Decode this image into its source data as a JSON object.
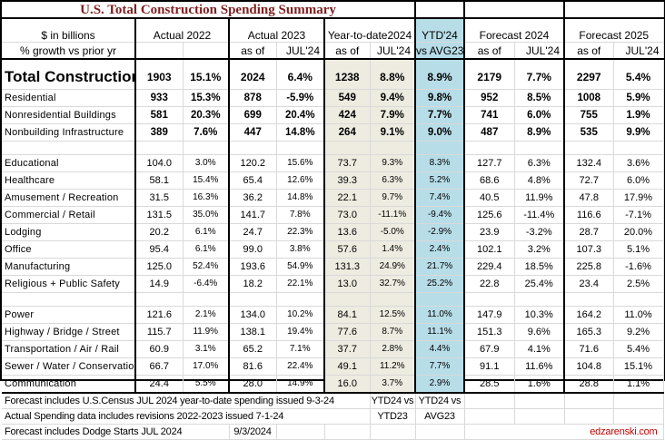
{
  "title": "U.S. Total Construction Spending Summary",
  "header": {
    "label_line1": "$ in billions",
    "label_line2": "% growth vs prior yr",
    "groups": [
      {
        "line1": "Actual 2022",
        "sub1": "",
        "sub2": ""
      },
      {
        "line1": "Actual 2023",
        "sub1": "as of",
        "sub2": "JUL'24"
      },
      {
        "line1": "Year-to-date2024",
        "sub1": "as of",
        "sub2": "JUL'24"
      },
      {
        "line1": "YTD'24",
        "sub1": "vs AVG23"
      },
      {
        "line1": "Forecast 2024",
        "sub1": "as of",
        "sub2": "JUL'24"
      },
      {
        "line1": "Forecast 2025",
        "sub1": "as of",
        "sub2": "JUL'24"
      }
    ]
  },
  "columns": [
    "Actual 2022 $",
    "Actual 2022 %",
    "Actual 2023 $",
    "Actual 2023 %",
    "YTD 2024 $",
    "YTD 2024 %",
    "YTD'24 vs AVG23",
    "Forecast 2024 $",
    "Forecast 2024 %",
    "Forecast 2025 $",
    "Forecast 2025 %"
  ],
  "total": {
    "label": "Total Construction",
    "values": [
      "1903",
      "15.1%",
      "2024",
      "6.4%",
      "1238",
      "8.8%",
      "8.9%",
      "2179",
      "7.7%",
      "2297",
      "5.4%"
    ]
  },
  "main_rows": [
    {
      "label": "Residential",
      "values": [
        "933",
        "15.3%",
        "878",
        "-5.9%",
        "549",
        "9.4%",
        "9.8%",
        "952",
        "8.5%",
        "1008",
        "5.9%"
      ]
    },
    {
      "label": "Nonresidential Buildings",
      "values": [
        "581",
        "20.3%",
        "699",
        "20.4%",
        "424",
        "7.9%",
        "7.7%",
        "741",
        "6.0%",
        "755",
        "1.9%"
      ]
    },
    {
      "label": "Nonbuilding Infrastructure",
      "values": [
        "389",
        "7.6%",
        "447",
        "14.8%",
        "264",
        "9.1%",
        "9.0%",
        "487",
        "8.9%",
        "535",
        "9.9%"
      ]
    }
  ],
  "nonres_rows": [
    {
      "label": "Educational",
      "values": [
        "104.0",
        "3.0%",
        "120.2",
        "15.6%",
        "73.7",
        "9.3%",
        "8.3%",
        "127.7",
        "6.3%",
        "132.4",
        "3.6%"
      ]
    },
    {
      "label": "Healthcare",
      "values": [
        "58.1",
        "15.4%",
        "65.4",
        "12.6%",
        "39.3",
        "6.3%",
        "5.2%",
        "68.6",
        "4.8%",
        "72.7",
        "6.0%"
      ]
    },
    {
      "label": "Amusement / Recreation",
      "values": [
        "31.5",
        "16.3%",
        "36.2",
        "14.8%",
        "22.1",
        "9.7%",
        "7.4%",
        "40.5",
        "11.9%",
        "47.8",
        "17.9%"
      ]
    },
    {
      "label": "Commercial / Retail",
      "values": [
        "131.5",
        "35.0%",
        "141.7",
        "7.8%",
        "73.0",
        "-11.1%",
        "-9.4%",
        "125.6",
        "-11.4%",
        "116.6",
        "-7.1%"
      ]
    },
    {
      "label": "Lodging",
      "values": [
        "20.2",
        "6.1%",
        "24.7",
        "22.3%",
        "13.6",
        "-5.0%",
        "-2.9%",
        "23.9",
        "-3.2%",
        "28.7",
        "20.0%"
      ]
    },
    {
      "label": "Office",
      "values": [
        "95.4",
        "6.1%",
        "99.0",
        "3.8%",
        "57.6",
        "1.4%",
        "2.4%",
        "102.1",
        "3.2%",
        "107.3",
        "5.1%"
      ]
    },
    {
      "label": "Manufacturing",
      "values": [
        "125.0",
        "52.4%",
        "193.6",
        "54.9%",
        "131.3",
        "24.9%",
        "21.7%",
        "229.4",
        "18.5%",
        "225.8",
        "-1.6%"
      ]
    },
    {
      "label": "Religious + Public Safety",
      "values": [
        "14.9",
        "-6.4%",
        "18.2",
        "22.1%",
        "13.0",
        "32.7%",
        "25.2%",
        "22.8",
        "25.4%",
        "23.4",
        "2.5%"
      ]
    }
  ],
  "nonbldg_rows": [
    {
      "label": "Power",
      "values": [
        "121.6",
        "2.1%",
        "134.0",
        "10.2%",
        "84.1",
        "12.5%",
        "11.0%",
        "147.9",
        "10.3%",
        "164.2",
        "11.0%"
      ]
    },
    {
      "label": "Highway / Bridge / Street",
      "values": [
        "115.7",
        "11.9%",
        "138.1",
        "19.4%",
        "77.6",
        "8.7%",
        "11.1%",
        "151.3",
        "9.6%",
        "165.3",
        "9.2%"
      ]
    },
    {
      "label": "Transportation / Air / Rail",
      "values": [
        "60.9",
        "3.1%",
        "65.2",
        "7.1%",
        "37.7",
        "2.8%",
        "4.4%",
        "67.9",
        "4.1%",
        "71.6",
        "5.4%"
      ]
    },
    {
      "label": "Sewer / Water / Conservation",
      "values": [
        "66.7",
        "17.0%",
        "81.6",
        "22.4%",
        "49.1",
        "11.2%",
        "7.7%",
        "91.1",
        "11.6%",
        "104.8",
        "15.1%"
      ]
    },
    {
      "label": "Communication",
      "values": [
        "24.4",
        "5.5%",
        "28.0",
        "14.9%",
        "16.0",
        "3.7%",
        "2.9%",
        "28.5",
        "1.6%",
        "28.8",
        "1.1%"
      ]
    }
  ],
  "footer": {
    "note1": "Forecast includes U.S.Census JUL 2024 year-to-date spending issued 9-3-24",
    "note2": "Actual Spending data includes revisions 2022-2023 issued 7-1-24",
    "note3": "Forecast includes Dodge Starts JUL 2024",
    "note3_date": "9/3/2024",
    "ytd_vs_line1": "YTD24 vs",
    "ytd_vs_line2": "YTD23",
    "avg_vs_line1": "YTD24 vs",
    "avg_vs_line2": "AVG23",
    "credit": "edzarenski.com"
  },
  "colors": {
    "title": "#7f1f1f",
    "ytd_fill": "#eeece1",
    "avg_fill": "#b7dde8",
    "credit": "#c00000"
  }
}
